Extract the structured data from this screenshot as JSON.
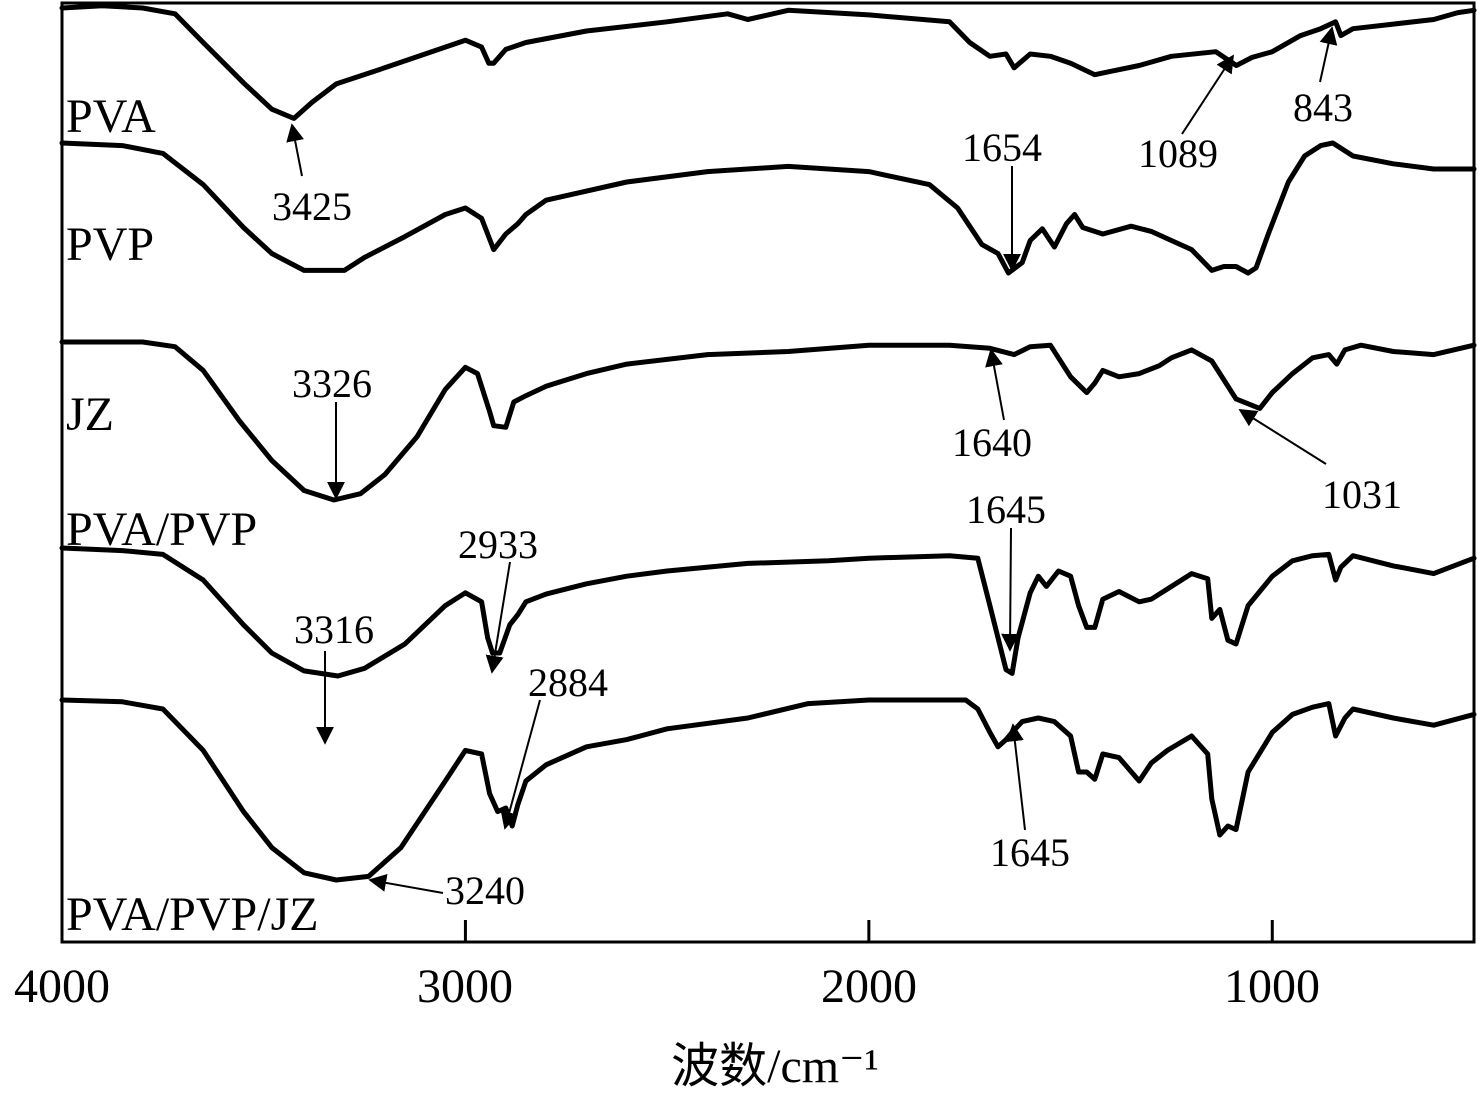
{
  "chart_data": {
    "type": "line",
    "xlabel": "波数/cm⁻¹",
    "x_reversed": true,
    "xlim": [
      4000,
      500
    ],
    "xticks": [
      4000,
      3000,
      2000,
      1000
    ],
    "grid": false,
    "series": [
      {
        "name": "PVA",
        "points": [
          [
            4000,
            0.0
          ],
          [
            3900,
            -0.02
          ],
          [
            3800,
            0.0
          ],
          [
            3720,
            0.05
          ],
          [
            3650,
            0.3
          ],
          [
            3550,
            0.65
          ],
          [
            3480,
            0.88
          ],
          [
            3425,
            0.96
          ],
          [
            3380,
            0.82
          ],
          [
            3320,
            0.66
          ],
          [
            3200,
            0.52
          ],
          [
            3100,
            0.4
          ],
          [
            3000,
            0.28
          ],
          [
            2960,
            0.34
          ],
          [
            2942,
            0.48
          ],
          [
            2930,
            0.48
          ],
          [
            2900,
            0.36
          ],
          [
            2850,
            0.3
          ],
          [
            2700,
            0.2
          ],
          [
            2500,
            0.12
          ],
          [
            2350,
            0.05
          ],
          [
            2300,
            0.1
          ],
          [
            2200,
            0.02
          ],
          [
            2000,
            0.06
          ],
          [
            1800,
            0.12
          ],
          [
            1750,
            0.3
          ],
          [
            1700,
            0.42
          ],
          [
            1660,
            0.4
          ],
          [
            1640,
            0.52
          ],
          [
            1600,
            0.4
          ],
          [
            1550,
            0.42
          ],
          [
            1500,
            0.48
          ],
          [
            1440,
            0.58
          ],
          [
            1400,
            0.55
          ],
          [
            1330,
            0.5
          ],
          [
            1250,
            0.42
          ],
          [
            1140,
            0.38
          ],
          [
            1089,
            0.5
          ],
          [
            1050,
            0.43
          ],
          [
            1000,
            0.38
          ],
          [
            930,
            0.24
          ],
          [
            880,
            0.18
          ],
          [
            843,
            0.12
          ],
          [
            830,
            0.24
          ],
          [
            800,
            0.18
          ],
          [
            700,
            0.14
          ],
          [
            600,
            0.1
          ],
          [
            540,
            0.04
          ],
          [
            500,
            0.02
          ]
        ]
      },
      {
        "name": "PVP",
        "points": [
          [
            4000,
            0.0
          ],
          [
            3850,
            0.02
          ],
          [
            3750,
            0.08
          ],
          [
            3650,
            0.32
          ],
          [
            3550,
            0.65
          ],
          [
            3480,
            0.85
          ],
          [
            3400,
            0.98
          ],
          [
            3300,
            0.98
          ],
          [
            3250,
            0.88
          ],
          [
            3150,
            0.72
          ],
          [
            3050,
            0.55
          ],
          [
            3000,
            0.5
          ],
          [
            2960,
            0.58
          ],
          [
            2930,
            0.82
          ],
          [
            2900,
            0.7
          ],
          [
            2870,
            0.62
          ],
          [
            2850,
            0.55
          ],
          [
            2800,
            0.44
          ],
          [
            2600,
            0.3
          ],
          [
            2400,
            0.22
          ],
          [
            2200,
            0.18
          ],
          [
            2000,
            0.22
          ],
          [
            1850,
            0.32
          ],
          [
            1780,
            0.5
          ],
          [
            1720,
            0.78
          ],
          [
            1680,
            0.85
          ],
          [
            1654,
            1.0
          ],
          [
            1620,
            0.92
          ],
          [
            1600,
            0.75
          ],
          [
            1570,
            0.66
          ],
          [
            1540,
            0.8
          ],
          [
            1510,
            0.62
          ],
          [
            1490,
            0.55
          ],
          [
            1470,
            0.65
          ],
          [
            1420,
            0.7
          ],
          [
            1350,
            0.64
          ],
          [
            1300,
            0.68
          ],
          [
            1250,
            0.75
          ],
          [
            1200,
            0.82
          ],
          [
            1150,
            0.98
          ],
          [
            1120,
            0.95
          ],
          [
            1090,
            0.95
          ],
          [
            1060,
            1.0
          ],
          [
            1040,
            0.96
          ],
          [
            1010,
            0.7
          ],
          [
            960,
            0.3
          ],
          [
            920,
            0.1
          ],
          [
            880,
            0.02
          ],
          [
            850,
            0.0
          ],
          [
            800,
            0.1
          ],
          [
            700,
            0.16
          ],
          [
            600,
            0.2
          ],
          [
            500,
            0.2
          ]
        ]
      },
      {
        "name": "JZ",
        "points": [
          [
            4000,
            0.0
          ],
          [
            3800,
            0.0
          ],
          [
            3720,
            0.03
          ],
          [
            3650,
            0.18
          ],
          [
            3560,
            0.5
          ],
          [
            3480,
            0.75
          ],
          [
            3400,
            0.94
          ],
          [
            3326,
            1.0
          ],
          [
            3260,
            0.96
          ],
          [
            3200,
            0.84
          ],
          [
            3120,
            0.6
          ],
          [
            3050,
            0.3
          ],
          [
            3000,
            0.16
          ],
          [
            2970,
            0.2
          ],
          [
            2940,
            0.44
          ],
          [
            2930,
            0.53
          ],
          [
            2900,
            0.54
          ],
          [
            2880,
            0.38
          ],
          [
            2850,
            0.34
          ],
          [
            2800,
            0.28
          ],
          [
            2700,
            0.2
          ],
          [
            2600,
            0.14
          ],
          [
            2400,
            0.08
          ],
          [
            2200,
            0.06
          ],
          [
            2000,
            0.02
          ],
          [
            1800,
            0.02
          ],
          [
            1700,
            0.04
          ],
          [
            1640,
            0.08
          ],
          [
            1600,
            0.03
          ],
          [
            1550,
            0.02
          ],
          [
            1500,
            0.22
          ],
          [
            1460,
            0.32
          ],
          [
            1440,
            0.26
          ],
          [
            1420,
            0.18
          ],
          [
            1380,
            0.22
          ],
          [
            1330,
            0.2
          ],
          [
            1280,
            0.15
          ],
          [
            1250,
            0.1
          ],
          [
            1200,
            0.05
          ],
          [
            1150,
            0.12
          ],
          [
            1120,
            0.24
          ],
          [
            1090,
            0.36
          ],
          [
            1031,
            0.42
          ],
          [
            1000,
            0.32
          ],
          [
            950,
            0.2
          ],
          [
            900,
            0.1
          ],
          [
            860,
            0.08
          ],
          [
            840,
            0.14
          ],
          [
            820,
            0.05
          ],
          [
            780,
            0.02
          ],
          [
            700,
            0.06
          ],
          [
            600,
            0.08
          ],
          [
            500,
            0.02
          ]
        ]
      },
      {
        "name": "PVA/PVP",
        "points": [
          [
            4000,
            0.0
          ],
          [
            3850,
            0.02
          ],
          [
            3750,
            0.05
          ],
          [
            3650,
            0.25
          ],
          [
            3550,
            0.6
          ],
          [
            3480,
            0.82
          ],
          [
            3400,
            0.96
          ],
          [
            3316,
            1.0
          ],
          [
            3250,
            0.94
          ],
          [
            3150,
            0.75
          ],
          [
            3050,
            0.45
          ],
          [
            3000,
            0.35
          ],
          [
            2960,
            0.42
          ],
          [
            2945,
            0.7
          ],
          [
            2933,
            0.82
          ],
          [
            2915,
            0.82
          ],
          [
            2890,
            0.6
          ],
          [
            2870,
            0.52
          ],
          [
            2850,
            0.42
          ],
          [
            2800,
            0.36
          ],
          [
            2700,
            0.28
          ],
          [
            2600,
            0.22
          ],
          [
            2500,
            0.18
          ],
          [
            2300,
            0.12
          ],
          [
            2100,
            0.1
          ],
          [
            2000,
            0.08
          ],
          [
            1800,
            0.06
          ],
          [
            1730,
            0.08
          ],
          [
            1700,
            0.45
          ],
          [
            1660,
            0.95
          ],
          [
            1645,
            0.98
          ],
          [
            1630,
            0.7
          ],
          [
            1600,
            0.35
          ],
          [
            1580,
            0.22
          ],
          [
            1560,
            0.3
          ],
          [
            1530,
            0.18
          ],
          [
            1500,
            0.22
          ],
          [
            1480,
            0.45
          ],
          [
            1460,
            0.62
          ],
          [
            1440,
            0.62
          ],
          [
            1420,
            0.4
          ],
          [
            1380,
            0.34
          ],
          [
            1330,
            0.42
          ],
          [
            1300,
            0.4
          ],
          [
            1260,
            0.32
          ],
          [
            1200,
            0.2
          ],
          [
            1160,
            0.24
          ],
          [
            1150,
            0.55
          ],
          [
            1130,
            0.48
          ],
          [
            1110,
            0.72
          ],
          [
            1090,
            0.75
          ],
          [
            1060,
            0.45
          ],
          [
            1000,
            0.22
          ],
          [
            950,
            0.1
          ],
          [
            900,
            0.06
          ],
          [
            860,
            0.05
          ],
          [
            843,
            0.25
          ],
          [
            830,
            0.15
          ],
          [
            800,
            0.06
          ],
          [
            700,
            0.14
          ],
          [
            600,
            0.2
          ],
          [
            500,
            0.08
          ]
        ]
      },
      {
        "name": "PVA/PVP/JZ",
        "points": [
          [
            4000,
            0.0
          ],
          [
            3850,
            0.01
          ],
          [
            3750,
            0.05
          ],
          [
            3650,
            0.28
          ],
          [
            3550,
            0.62
          ],
          [
            3480,
            0.82
          ],
          [
            3400,
            0.96
          ],
          [
            3320,
            1.0
          ],
          [
            3240,
            0.98
          ],
          [
            3160,
            0.82
          ],
          [
            3050,
            0.45
          ],
          [
            3000,
            0.28
          ],
          [
            2960,
            0.3
          ],
          [
            2940,
            0.52
          ],
          [
            2920,
            0.62
          ],
          [
            2900,
            0.6
          ],
          [
            2884,
            0.7
          ],
          [
            2870,
            0.58
          ],
          [
            2850,
            0.45
          ],
          [
            2800,
            0.36
          ],
          [
            2700,
            0.26
          ],
          [
            2600,
            0.22
          ],
          [
            2500,
            0.16
          ],
          [
            2300,
            0.1
          ],
          [
            2150,
            0.02
          ],
          [
            2000,
            0.0
          ],
          [
            1850,
            0.0
          ],
          [
            1760,
            0.0
          ],
          [
            1730,
            0.05
          ],
          [
            1700,
            0.18
          ],
          [
            1680,
            0.26
          ],
          [
            1660,
            0.22
          ],
          [
            1645,
            0.18
          ],
          [
            1620,
            0.12
          ],
          [
            1580,
            0.1
          ],
          [
            1540,
            0.12
          ],
          [
            1500,
            0.2
          ],
          [
            1480,
            0.4
          ],
          [
            1460,
            0.4
          ],
          [
            1440,
            0.44
          ],
          [
            1420,
            0.3
          ],
          [
            1380,
            0.32
          ],
          [
            1330,
            0.45
          ],
          [
            1300,
            0.35
          ],
          [
            1260,
            0.28
          ],
          [
            1200,
            0.2
          ],
          [
            1160,
            0.3
          ],
          [
            1150,
            0.55
          ],
          [
            1130,
            0.75
          ],
          [
            1110,
            0.7
          ],
          [
            1090,
            0.72
          ],
          [
            1060,
            0.4
          ],
          [
            1000,
            0.18
          ],
          [
            950,
            0.08
          ],
          [
            900,
            0.04
          ],
          [
            860,
            0.02
          ],
          [
            843,
            0.2
          ],
          [
            820,
            0.1
          ],
          [
            800,
            0.05
          ],
          [
            700,
            0.1
          ],
          [
            600,
            0.14
          ],
          [
            500,
            0.08
          ]
        ]
      }
    ],
    "annotations": [
      {
        "text": "3425"
      },
      {
        "text": "1654"
      },
      {
        "text": "1089"
      },
      {
        "text": "843"
      },
      {
        "text": "3326"
      },
      {
        "text": "1640"
      },
      {
        "text": "1031"
      },
      {
        "text": "2933"
      },
      {
        "text": "1645"
      },
      {
        "text": "3316"
      },
      {
        "text": "2884"
      },
      {
        "text": "1645"
      },
      {
        "text": "3240"
      }
    ]
  }
}
